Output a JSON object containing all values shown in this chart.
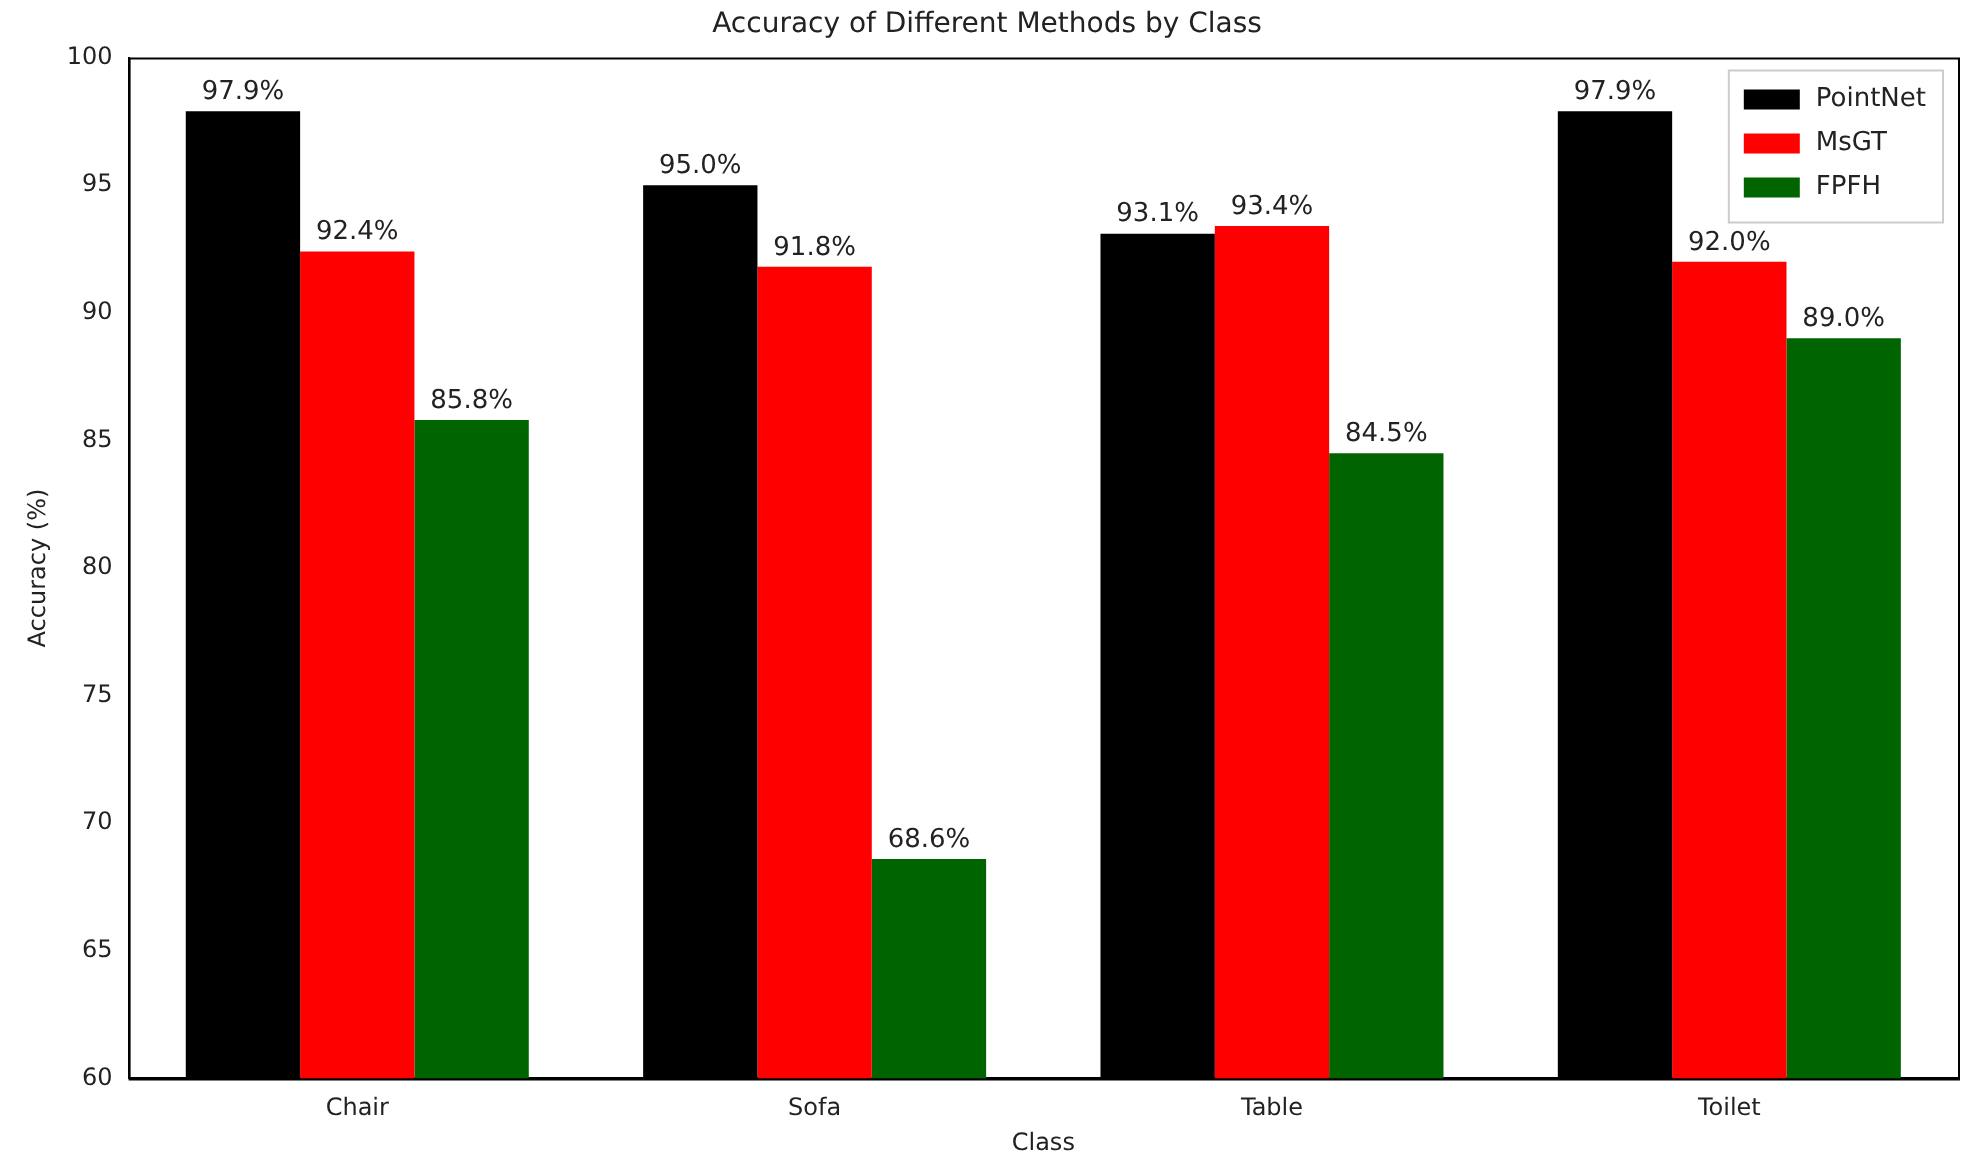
{
  "chart_data": {
    "type": "bar",
    "title": "Accuracy of Different Methods by Class",
    "xlabel": "Class",
    "ylabel": "Accuracy (%)",
    "categories": [
      "Chair",
      "Sofa",
      "Table",
      "Toilet"
    ],
    "series": [
      {
        "name": "PointNet",
        "color": "#000000",
        "values": [
          97.9,
          95.0,
          93.1,
          97.9
        ],
        "value_labels": [
          "97.9%",
          "95.0%",
          "93.1%",
          "97.9%"
        ]
      },
      {
        "name": "MsGT",
        "color": "#ff0000",
        "values": [
          92.4,
          91.8,
          93.4,
          92.0
        ],
        "value_labels": [
          "92.4%",
          "91.8%",
          "93.4%",
          "92.0%"
        ]
      },
      {
        "name": "FPFH",
        "color": "#006400",
        "values": [
          85.8,
          68.6,
          84.5,
          89.0
        ],
        "value_labels": [
          "85.8%",
          "68.6%",
          "84.5%",
          "89.0%"
        ]
      }
    ],
    "ylim": [
      60,
      100
    ],
    "yticks": [
      60,
      65,
      70,
      75,
      80,
      85,
      90,
      95,
      100
    ],
    "grid": false,
    "legend": "top right"
  }
}
